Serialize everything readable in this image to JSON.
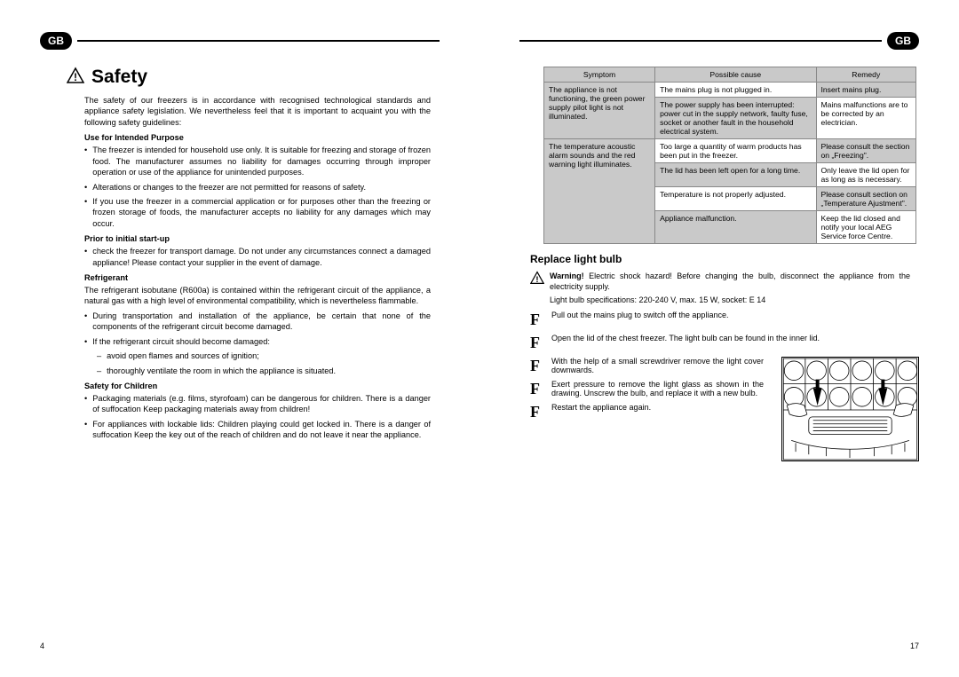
{
  "gb_label": "GB",
  "left": {
    "title": "Safety",
    "intro": "The safety of our freezers is in accordance with recognised technological standards and appliance safety legislation. We nevertheless feel that it is important to acquaint you with the following safety guidelines:",
    "sections": [
      {
        "heading": "Use for Intended Purpose",
        "items": [
          "The freezer is intended for household use only. It is suitable for freezing and storage of frozen food. The manufacturer assumes no liability for damages occurring through improper operation or use of the appliance for unintended purposes.",
          "Alterations or changes to the freezer are not permitted for reasons of safety.",
          "If you use the freezer in a commercial application or for purposes other than the freezing or frozen storage of foods, the manufacturer accepts no liability for any damages which may occur."
        ]
      },
      {
        "heading": "Prior to initial start-up",
        "items": [
          "check the freezer for transport damage. Do not under any circumstances connect a damaged appliance! Please contact your supplier in the event of damage."
        ]
      },
      {
        "heading": "Refrigerant",
        "plain": "The refrigerant isobutane (R600a) is contained within the refrigerant circuit of the appliance, a natural gas with a high level of environmental compatibility, which is nevertheless flammable.",
        "items": [
          "During transportation and installation of the appliance, be certain that none of the components of the refrigerant circuit become damaged.",
          "If the refrigerant circuit should become damaged:"
        ],
        "dashes": [
          "avoid open flames and sources of ignition;",
          "thoroughly ventilate the room in which the appliance is situated."
        ]
      },
      {
        "heading": "Safety for Children",
        "items": [
          "Packaging materials (e.g. films, styrofoam) can be dangerous for children. There is a danger of suffocation Keep packaging materials away from children!",
          "For appliances with lockable lids: Children playing could get locked in. There is a danger of suffocation Keep the key out of the reach of children and do not leave it near the appliance."
        ]
      }
    ],
    "pagenum": "4"
  },
  "right": {
    "table": {
      "headers": [
        "Symptom",
        "Possible cause",
        "Remedy"
      ],
      "rows": [
        {
          "symptom_span": 2,
          "symptom": "The appliance is not functioning, the green power supply pilot light is not illuminated.",
          "cause": "The mains plug is not plugged in.",
          "remedy": "Insert mains plug.",
          "gray": [
            "c",
            "w",
            "c"
          ]
        },
        {
          "cause": "The power supply has been interrupted: power cut in the supply network, faulty fuse, socket or another fault in the household electrical system.",
          "remedy": "Mains malfunctions are to be corrected by an electrician.",
          "gray": [
            "",
            "c",
            "w"
          ]
        },
        {
          "symptom_span": 4,
          "symptom": "The temperature acoustic alarm sounds and the red warning light illuminates.",
          "cause": "Too large a quantity of warm products has been put in the freezer.",
          "remedy": "Please consult the section on „Freezing\".",
          "gray": [
            "c",
            "w",
            "c"
          ]
        },
        {
          "cause": "The lid has been left open for a long time.",
          "remedy": "Only leave the lid open for as long as is necessary.",
          "gray": [
            "",
            "c",
            "w"
          ]
        },
        {
          "cause": "Temperature is not properly adjusted.",
          "remedy": "Please consult section on „Temperature Ajustment\".",
          "gray": [
            "",
            "w",
            "c"
          ]
        },
        {
          "cause": "Appliance malfunction.",
          "remedy": "Keep the lid closed and notify your local AEG Service force Centre.",
          "gray": [
            "",
            "c",
            "w"
          ]
        }
      ]
    },
    "replace_title": "Replace light bulb",
    "warning": "Warning! Electric shock hazard! Before changing the bulb, disconnect the appliance from the electricity supply.",
    "warning_bold": "Warning!",
    "spec": "Light bulb specifications: 220-240 V, max. 15 W, socket: E 14",
    "steps": [
      "Pull out the mains plug to switch off the appliance.",
      "Open the lid of the chest freezer. The light bulb can be found in the inner lid.",
      "With the help of a small screwdriver remove the light cover downwards.",
      "Exert pressure to remove the light glass as shown in the drawing. Unscrew the bulb, and replace it with a new bulb.",
      "Restart the appliance again."
    ],
    "pagenum": "17"
  }
}
